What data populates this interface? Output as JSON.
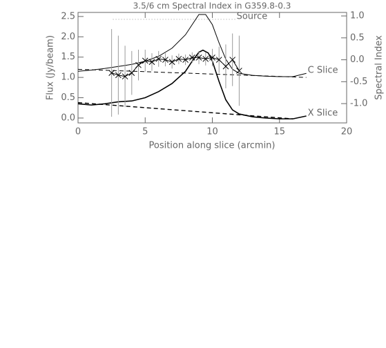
{
  "chart_data": {
    "type": "line",
    "title": "3.5/6 cm Spectral Index in G359.8-0.3",
    "x_label": "Position along slice (arcmin)",
    "y_label": "Flux (Jy/beam)",
    "y2_label": "Spectral Index",
    "xlim": [
      0,
      20
    ],
    "xticks": [
      0,
      5,
      10,
      15,
      20
    ],
    "ylim": [
      -0.12,
      2.6
    ],
    "yticks": [
      {
        "value": 0,
        "label": "0.0"
      },
      0.5,
      {
        "value": 1,
        "label": "1.0"
      },
      1.5,
      {
        "value": 2,
        "label": "2.0"
      },
      2.5
    ],
    "y2lim": [
      -1.44,
      1.08
    ],
    "y2ticks": [
      {
        "value": -1,
        "label": "-1.0"
      },
      -0.5,
      {
        "value": 0,
        "label": "0.0"
      },
      0.5,
      {
        "value": 1,
        "label": "1.0"
      }
    ],
    "axis_color": "#666666",
    "series": [
      {
        "name": "Source",
        "color": "#999999",
        "dash": "dotted",
        "width": 1,
        "x": [
          2.6,
          11.7
        ],
        "values": [
          2.43,
          2.43
        ]
      },
      {
        "name": "C Slice",
        "color": "#000000",
        "dash": "solid",
        "width": 1,
        "x": [
          0,
          1,
          2,
          3,
          4,
          5,
          6,
          7,
          8,
          8.5,
          9,
          9.5,
          10,
          10.5,
          11,
          11.5,
          12,
          13,
          14,
          15,
          16,
          17
        ],
        "values": [
          1.15,
          1.18,
          1.22,
          1.27,
          1.32,
          1.4,
          1.52,
          1.72,
          2.05,
          2.3,
          2.55,
          2.55,
          2.3,
          1.85,
          1.45,
          1.2,
          1.1,
          1.05,
          1.03,
          1.02,
          1.02,
          1.1
        ]
      },
      {
        "color": "#000000",
        "dash": "dashed",
        "width": 1,
        "x": [
          0,
          17
        ],
        "values": [
          1.2,
          1.0
        ]
      },
      {
        "name": "X Slice",
        "color": "#000000",
        "dash": "solid",
        "width": 1.6,
        "x": [
          0,
          1,
          2,
          3,
          4,
          5,
          6,
          7,
          8,
          8.5,
          9,
          9.3,
          9.7,
          10,
          10.5,
          11,
          11.5,
          12,
          13,
          14,
          15,
          16,
          17
        ],
        "values": [
          0.35,
          0.32,
          0.35,
          0.4,
          0.42,
          0.5,
          0.65,
          0.85,
          1.15,
          1.4,
          1.62,
          1.67,
          1.6,
          1.4,
          0.9,
          0.45,
          0.2,
          0.1,
          0.03,
          0.0,
          -0.02,
          -0.02,
          0.05
        ]
      },
      {
        "color": "#000000",
        "dash": "dashed",
        "width": 1.4,
        "x": [
          0,
          16
        ],
        "values": [
          0.38,
          -0.02
        ]
      },
      {
        "color": "#000000",
        "dash": "solid",
        "width": 1,
        "axis": "y2",
        "marker": "x",
        "error_color": "#999999",
        "x": [
          2.5,
          3,
          3.5,
          4,
          4.5,
          5,
          5.5,
          6,
          6.5,
          7,
          7.5,
          8,
          8.5,
          9,
          9.5,
          10,
          10.5,
          11,
          11.5,
          12
        ],
        "values": [
          -0.3,
          -0.35,
          -0.38,
          -0.3,
          -0.12,
          -0.02,
          -0.05,
          0.02,
          0.0,
          -0.05,
          0.02,
          0.0,
          0.05,
          0.05,
          0.02,
          0.05,
          0.0,
          -0.15,
          0.0,
          -0.25
        ],
        "errors": [
          1.0,
          0.9,
          0.7,
          0.5,
          0.35,
          0.25,
          0.2,
          0.18,
          0.15,
          0.15,
          0.12,
          0.12,
          0.12,
          0.15,
          0.15,
          0.2,
          0.3,
          0.5,
          0.6,
          0.8
        ]
      }
    ]
  }
}
